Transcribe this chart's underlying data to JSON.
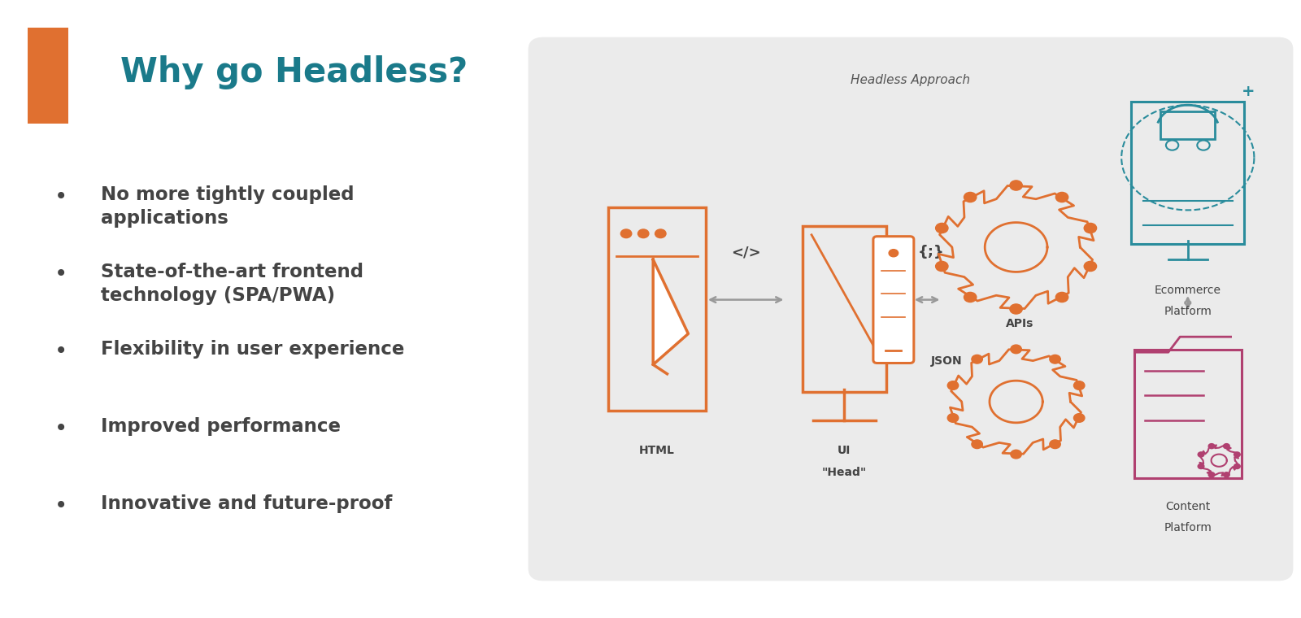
{
  "title": "Why go Headless?",
  "title_color": "#1a7a8a",
  "title_fontsize": 30,
  "accent_color": "#e07030",
  "teal": "#2a8c9c",
  "pink": "#b04070",
  "orange": "#e07030",
  "gray_text": "#555555",
  "dark_text": "#444444",
  "bullet_items": [
    "No more tightly coupled\napplications",
    "State-of-the-art frontend\ntechnology (SPA/PWA)",
    "Flexibility in user experience",
    "Improved performance",
    "Innovative and future-proof"
  ],
  "diagram_bg": "#ebebeb",
  "diagram_title": "Headless Approach",
  "arrow_color": "#999999"
}
